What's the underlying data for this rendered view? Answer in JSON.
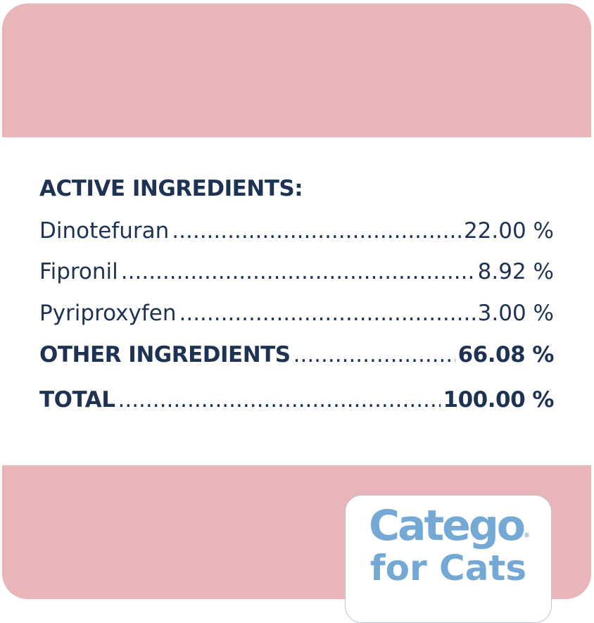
{
  "heading": "ACTIVE INGREDIENTS:",
  "rows": [
    {
      "name": "Dinotefuran",
      "value": "22.00 %",
      "bold": false
    },
    {
      "name": "Fipronil",
      "value": "8.92 %",
      "bold": false
    },
    {
      "name": "Pyriproxyfen",
      "value": "3.00 %",
      "bold": false
    },
    {
      "name": "OTHER INGREDIENTS",
      "value": "66.08 %",
      "bold": true
    },
    {
      "name": "TOTAL",
      "value": "100.00 %",
      "bold": true
    }
  ],
  "logo": {
    "line1": "Catego",
    "line2": "for Cats",
    "registered": "®"
  },
  "colors": {
    "pink": "#e8b5b9",
    "navy": "#1e3354",
    "logo_blue": "#74a8d5"
  }
}
